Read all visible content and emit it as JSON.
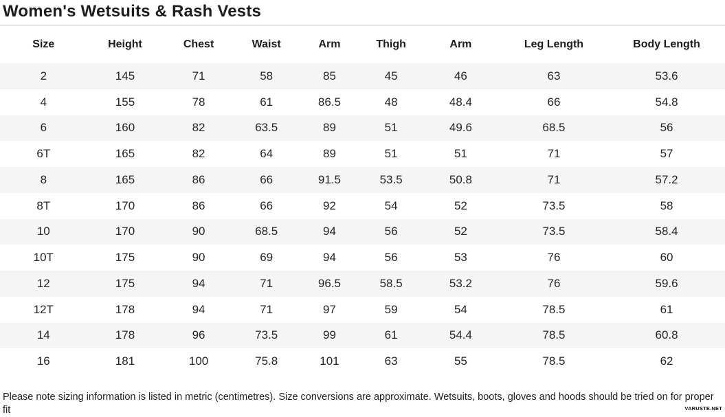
{
  "page": {
    "title": "Women's Wetsuits & Rash Vests",
    "footer_note": "Please note sizing information is listed in metric (centimetres). Size conversions are approximate. Wetsuits, boots, gloves and hoods should be tried on for proper fit",
    "watermark": "VARUSTE.NET"
  },
  "colors": {
    "row_stripe": "#f5f5f5",
    "divider": "#dddddd",
    "text": "#222222"
  },
  "table": {
    "columns": [
      "Size",
      "Height",
      "Chest",
      "Waist",
      "Arm",
      "Thigh",
      "Arm",
      "Leg Length",
      "Body Length"
    ],
    "rows": [
      [
        "2",
        "145",
        "71",
        "58",
        "85",
        "45",
        "46",
        "63",
        "53.6"
      ],
      [
        "4",
        "155",
        "78",
        "61",
        "86.5",
        "48",
        "48.4",
        "66",
        "54.8"
      ],
      [
        "6",
        "160",
        "82",
        "63.5",
        "89",
        "51",
        "49.6",
        "68.5",
        "56"
      ],
      [
        "6T",
        "165",
        "82",
        "64",
        "89",
        "51",
        "51",
        "71",
        "57"
      ],
      [
        "8",
        "165",
        "86",
        "66",
        "91.5",
        "53.5",
        "50.8",
        "71",
        "57.2"
      ],
      [
        "8T",
        "170",
        "86",
        "66",
        "92",
        "54",
        "52",
        "73.5",
        "58"
      ],
      [
        "10",
        "170",
        "90",
        "68.5",
        "94",
        "56",
        "52",
        "73.5",
        "58.4"
      ],
      [
        "10T",
        "175",
        "90",
        "69",
        "94",
        "56",
        "53",
        "76",
        "60"
      ],
      [
        "12",
        "175",
        "94",
        "71",
        "96.5",
        "58.5",
        "53.2",
        "76",
        "59.6"
      ],
      [
        "12T",
        "178",
        "94",
        "71",
        "97",
        "59",
        "54",
        "78.5",
        "61"
      ],
      [
        "14",
        "178",
        "96",
        "73.5",
        "99",
        "61",
        "54.4",
        "78.5",
        "60.8"
      ],
      [
        "16",
        "181",
        "100",
        "75.8",
        "101",
        "63",
        "55",
        "78.5",
        "62"
      ]
    ]
  }
}
